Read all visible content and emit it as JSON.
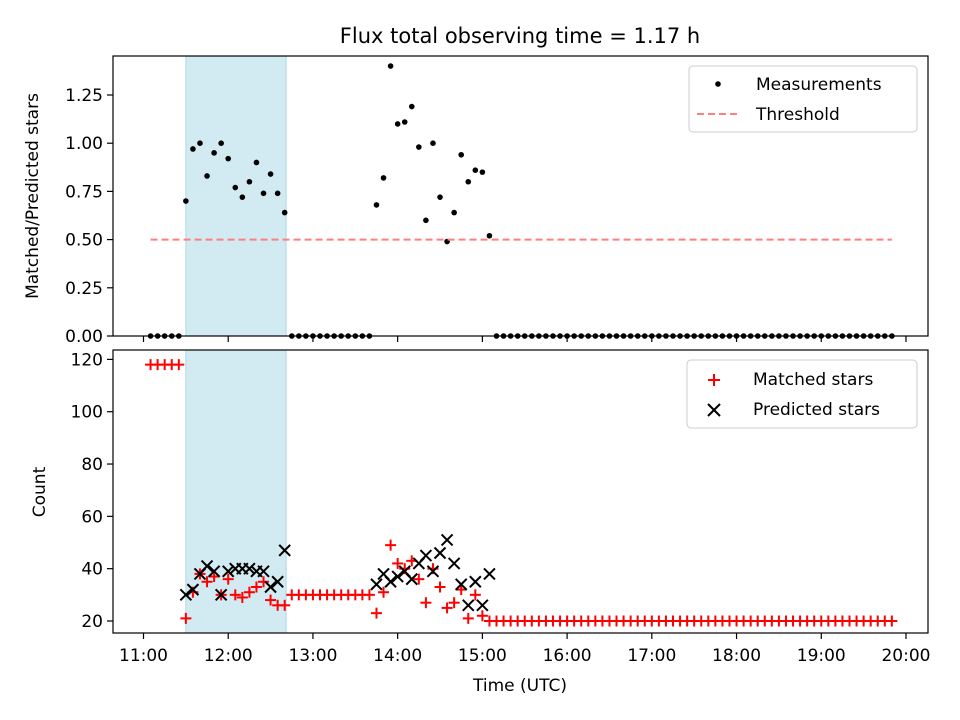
{
  "chart_data": [
    {
      "type": "scatter",
      "title": "Flux total observing time = 1.17 h",
      "xlabel": "",
      "ylabel": "Matched/Predicted stars",
      "xlim": [
        "11:00",
        "20:00"
      ],
      "ylim": [
        0,
        1.45
      ],
      "yticks": [
        "0.00",
        "0.25",
        "0.50",
        "0.75",
        "1.00",
        "1.25"
      ],
      "xticks": [
        "11:00",
        "12:00",
        "13:00",
        "14:00",
        "15:00",
        "16:00",
        "17:00",
        "18:00",
        "19:00",
        "20:00"
      ],
      "xtick_labels_shown": false,
      "shaded_interval": {
        "start": "11:30",
        "end": "12:41",
        "color": "#add8e6"
      },
      "legend": {
        "placement": "top-right",
        "entries": [
          "Measurements",
          "Threshold"
        ]
      },
      "series": [
        {
          "name": "Measurements",
          "color": "#000000",
          "marker": "dot",
          "points": [
            [
              "11:05",
              0
            ],
            [
              "11:10",
              0
            ],
            [
              "11:15",
              0
            ],
            [
              "11:20",
              0
            ],
            [
              "11:25",
              0
            ],
            [
              "11:30",
              0.7
            ],
            [
              "11:35",
              0.97
            ],
            [
              "11:40",
              1.0
            ],
            [
              "11:45",
              0.83
            ],
            [
              "11:50",
              0.95
            ],
            [
              "11:55",
              1.0
            ],
            [
              "12:00",
              0.92
            ],
            [
              "12:05",
              0.77
            ],
            [
              "12:10",
              0.72
            ],
            [
              "12:15",
              0.8
            ],
            [
              "12:20",
              0.9
            ],
            [
              "12:25",
              0.74
            ],
            [
              "12:30",
              0.84
            ],
            [
              "12:35",
              0.74
            ],
            [
              "12:40",
              0.64
            ],
            [
              "12:45",
              0
            ],
            [
              "12:50",
              0
            ],
            [
              "12:55",
              0
            ],
            [
              "13:00",
              0
            ],
            [
              "13:05",
              0
            ],
            [
              "13:10",
              0
            ],
            [
              "13:15",
              0
            ],
            [
              "13:20",
              0
            ],
            [
              "13:25",
              0
            ],
            [
              "13:30",
              0
            ],
            [
              "13:35",
              0
            ],
            [
              "13:40",
              0
            ],
            [
              "13:45",
              0.68
            ],
            [
              "13:50",
              0.82
            ],
            [
              "13:55",
              1.4
            ],
            [
              "14:00",
              1.1
            ],
            [
              "14:05",
              1.11
            ],
            [
              "14:10",
              1.19
            ],
            [
              "14:15",
              0.98
            ],
            [
              "14:20",
              0.6
            ],
            [
              "14:25",
              1.0
            ],
            [
              "14:30",
              0.72
            ],
            [
              "14:35",
              0.49
            ],
            [
              "14:40",
              0.64
            ],
            [
              "14:45",
              0.94
            ],
            [
              "14:50",
              0.8
            ],
            [
              "14:55",
              0.86
            ],
            [
              "15:00",
              0.85
            ],
            [
              "15:05",
              0.52
            ],
            [
              "15:10",
              0
            ],
            [
              "15:15",
              0
            ],
            [
              "15:20",
              0
            ],
            [
              "15:25",
              0
            ],
            [
              "15:30",
              0
            ],
            [
              "15:35",
              0
            ],
            [
              "15:40",
              0
            ],
            [
              "15:45",
              0
            ],
            [
              "15:50",
              0
            ],
            [
              "15:55",
              0
            ],
            [
              "16:00",
              0
            ],
            [
              "16:05",
              0
            ],
            [
              "16:10",
              0
            ],
            [
              "16:15",
              0
            ],
            [
              "16:20",
              0
            ],
            [
              "16:25",
              0
            ],
            [
              "16:30",
              0
            ],
            [
              "16:35",
              0
            ],
            [
              "16:40",
              0
            ],
            [
              "16:45",
              0
            ],
            [
              "16:50",
              0
            ],
            [
              "16:55",
              0
            ],
            [
              "17:00",
              0
            ],
            [
              "17:05",
              0
            ],
            [
              "17:10",
              0
            ],
            [
              "17:15",
              0
            ],
            [
              "17:20",
              0
            ],
            [
              "17:25",
              0
            ],
            [
              "17:30",
              0
            ],
            [
              "17:35",
              0
            ],
            [
              "17:40",
              0
            ],
            [
              "17:45",
              0
            ],
            [
              "17:50",
              0
            ],
            [
              "17:55",
              0
            ],
            [
              "18:00",
              0
            ],
            [
              "18:05",
              0
            ],
            [
              "18:10",
              0
            ],
            [
              "18:15",
              0
            ],
            [
              "18:20",
              0
            ],
            [
              "18:25",
              0
            ],
            [
              "18:30",
              0
            ],
            [
              "18:35",
              0
            ],
            [
              "18:40",
              0
            ],
            [
              "18:45",
              0
            ],
            [
              "18:50",
              0
            ],
            [
              "18:55",
              0
            ],
            [
              "19:00",
              0
            ],
            [
              "19:05",
              0
            ],
            [
              "19:10",
              0
            ],
            [
              "19:15",
              0
            ],
            [
              "19:20",
              0
            ],
            [
              "19:25",
              0
            ],
            [
              "19:30",
              0
            ],
            [
              "19:35",
              0
            ],
            [
              "19:40",
              0
            ],
            [
              "19:45",
              0
            ],
            [
              "19:50",
              0
            ]
          ]
        },
        {
          "name": "Threshold",
          "color": "#ff7f7f",
          "style": "dashed-line",
          "points": [
            [
              "11:05",
              0.5
            ],
            [
              "19:50",
              0.5
            ]
          ]
        }
      ]
    },
    {
      "type": "scatter",
      "title": "",
      "xlabel": "Time (UTC)",
      "ylabel": "Count",
      "xlim": [
        "11:00",
        "20:00"
      ],
      "ylim": [
        15,
        123
      ],
      "yticks": [
        "20",
        "40",
        "60",
        "80",
        "100",
        "120"
      ],
      "xticks": [
        "11:00",
        "12:00",
        "13:00",
        "14:00",
        "15:00",
        "16:00",
        "17:00",
        "18:00",
        "19:00",
        "20:00"
      ],
      "shaded_interval": {
        "start": "11:30",
        "end": "12:41",
        "color": "#add8e6"
      },
      "legend": {
        "placement": "top-right",
        "entries": [
          "Matched stars",
          "Predicted stars"
        ]
      },
      "series": [
        {
          "name": "Matched stars",
          "color": "#ff0000",
          "marker": "plus",
          "points": [
            [
              "11:05",
              118
            ],
            [
              "11:10",
              118
            ],
            [
              "11:15",
              118
            ],
            [
              "11:20",
              118
            ],
            [
              "11:25",
              118
            ],
            [
              "11:30",
              21
            ],
            [
              "11:35",
              31
            ],
            [
              "11:40",
              38
            ],
            [
              "11:45",
              35
            ],
            [
              "11:50",
              37
            ],
            [
              "11:55",
              30
            ],
            [
              "12:00",
              36
            ],
            [
              "12:05",
              30
            ],
            [
              "12:10",
              29
            ],
            [
              "12:15",
              31
            ],
            [
              "12:20",
              33
            ],
            [
              "12:25",
              35
            ],
            [
              "12:30",
              28
            ],
            [
              "12:35",
              26
            ],
            [
              "12:40",
              26
            ],
            [
              "12:45",
              30
            ],
            [
              "12:50",
              30
            ],
            [
              "12:55",
              30
            ],
            [
              "13:00",
              30
            ],
            [
              "13:05",
              30
            ],
            [
              "13:10",
              30
            ],
            [
              "13:15",
              30
            ],
            [
              "13:20",
              30
            ],
            [
              "13:25",
              30
            ],
            [
              "13:30",
              30
            ],
            [
              "13:35",
              30
            ],
            [
              "13:40",
              30
            ],
            [
              "13:45",
              23
            ],
            [
              "13:50",
              31
            ],
            [
              "13:55",
              49
            ],
            [
              "14:00",
              42
            ],
            [
              "14:05",
              40
            ],
            [
              "14:10",
              43
            ],
            [
              "14:15",
              36
            ],
            [
              "14:20",
              27
            ],
            [
              "14:25",
              40
            ],
            [
              "14:30",
              33
            ],
            [
              "14:35",
              25
            ],
            [
              "14:40",
              27
            ],
            [
              "14:45",
              32
            ],
            [
              "14:50",
              21
            ],
            [
              "14:55",
              30
            ],
            [
              "15:00",
              22
            ],
            [
              "15:05",
              20
            ],
            [
              "15:10",
              20
            ],
            [
              "15:15",
              20
            ],
            [
              "15:20",
              20
            ],
            [
              "15:25",
              20
            ],
            [
              "15:30",
              20
            ],
            [
              "15:35",
              20
            ],
            [
              "15:40",
              20
            ],
            [
              "15:45",
              20
            ],
            [
              "15:50",
              20
            ],
            [
              "15:55",
              20
            ],
            [
              "16:00",
              20
            ],
            [
              "16:05",
              20
            ],
            [
              "16:10",
              20
            ],
            [
              "16:15",
              20
            ],
            [
              "16:20",
              20
            ],
            [
              "16:25",
              20
            ],
            [
              "16:30",
              20
            ],
            [
              "16:35",
              20
            ],
            [
              "16:40",
              20
            ],
            [
              "16:45",
              20
            ],
            [
              "16:50",
              20
            ],
            [
              "16:55",
              20
            ],
            [
              "17:00",
              20
            ],
            [
              "17:05",
              20
            ],
            [
              "17:10",
              20
            ],
            [
              "17:15",
              20
            ],
            [
              "17:20",
              20
            ],
            [
              "17:25",
              20
            ],
            [
              "17:30",
              20
            ],
            [
              "17:35",
              20
            ],
            [
              "17:40",
              20
            ],
            [
              "17:45",
              20
            ],
            [
              "17:50",
              20
            ],
            [
              "17:55",
              20
            ],
            [
              "18:00",
              20
            ],
            [
              "18:05",
              20
            ],
            [
              "18:10",
              20
            ],
            [
              "18:15",
              20
            ],
            [
              "18:20",
              20
            ],
            [
              "18:25",
              20
            ],
            [
              "18:30",
              20
            ],
            [
              "18:35",
              20
            ],
            [
              "18:40",
              20
            ],
            [
              "18:45",
              20
            ],
            [
              "18:50",
              20
            ],
            [
              "18:55",
              20
            ],
            [
              "19:00",
              20
            ],
            [
              "19:05",
              20
            ],
            [
              "19:10",
              20
            ],
            [
              "19:15",
              20
            ],
            [
              "19:20",
              20
            ],
            [
              "19:25",
              20
            ],
            [
              "19:30",
              20
            ],
            [
              "19:35",
              20
            ],
            [
              "19:40",
              20
            ],
            [
              "19:45",
              20
            ],
            [
              "19:50",
              20
            ]
          ]
        },
        {
          "name": "Predicted stars",
          "color": "#000000",
          "marker": "x",
          "points": [
            [
              "11:30",
              30
            ],
            [
              "11:35",
              32
            ],
            [
              "11:40",
              38
            ],
            [
              "11:45",
              41
            ],
            [
              "11:50",
              39
            ],
            [
              "11:55",
              30
            ],
            [
              "12:00",
              39
            ],
            [
              "12:05",
              40
            ],
            [
              "12:10",
              40
            ],
            [
              "12:15",
              40
            ],
            [
              "12:20",
              39
            ],
            [
              "12:25",
              39
            ],
            [
              "12:30",
              33
            ],
            [
              "12:35",
              35
            ],
            [
              "12:40",
              47
            ],
            [
              "13:45",
              34
            ],
            [
              "13:50",
              38
            ],
            [
              "13:55",
              35
            ],
            [
              "14:00",
              37
            ],
            [
              "14:05",
              39
            ],
            [
              "14:10",
              36
            ],
            [
              "14:15",
              42
            ],
            [
              "14:20",
              45
            ],
            [
              "14:25",
              39
            ],
            [
              "14:30",
              46
            ],
            [
              "14:35",
              51
            ],
            [
              "14:40",
              42
            ],
            [
              "14:45",
              34
            ],
            [
              "14:50",
              26
            ],
            [
              "14:55",
              35
            ],
            [
              "15:00",
              26
            ],
            [
              "15:05",
              38
            ]
          ]
        }
      ]
    }
  ]
}
